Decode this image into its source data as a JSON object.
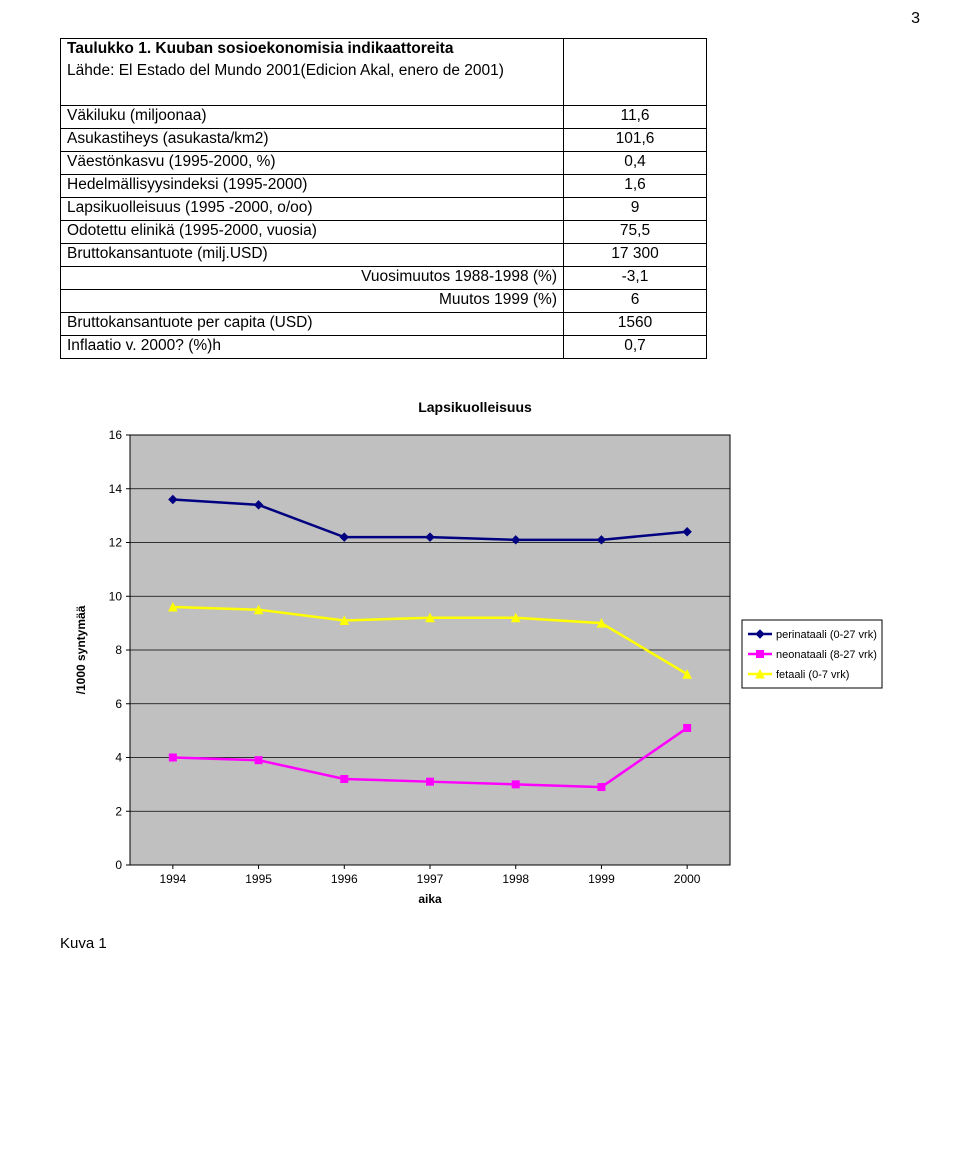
{
  "pagenum": "3",
  "table": {
    "caption": "Taulukko 1. Kuuban sosioekonomisia indikaattoreita",
    "source": "Lähde: El Estado del Mundo 2001(Edicion Akal, enero de 2001)",
    "rows": [
      {
        "label": "Väkiluku (miljoonaa)",
        "val": "11,6",
        "indent": 0
      },
      {
        "label": "Asukastiheys (asukasta/km2)",
        "val": "101,6",
        "indent": 0
      },
      {
        "label": "Väestönkasvu (1995-2000, %)",
        "val": "0,4",
        "indent": 0
      },
      {
        "label": "Hedelmällisyysindeksi (1995-2000)",
        "val": "1,6",
        "indent": 0
      },
      {
        "label": "Lapsikuolleisuus (1995 -2000, o/oo)",
        "val": "9",
        "indent": 0
      },
      {
        "label": "Odotettu elinikä (1995-2000, vuosia)",
        "val": "75,5",
        "indent": 0
      },
      {
        "label": "Bruttokansantuote (milj.USD)",
        "val": "17 300",
        "indent": 0
      },
      {
        "label": "Vuosimuutos 1988-1998 (%)",
        "val": "-3,1",
        "indent": 1
      },
      {
        "label": "Muutos 1999 (%)",
        "val": "6",
        "indent": 1
      },
      {
        "label": "Bruttokansantuote per capita (USD)",
        "val": "1560",
        "indent": 0
      },
      {
        "label": "Inflaatio v. 2000? (%)h",
        "val": "0,7",
        "indent": 0
      }
    ]
  },
  "chart": {
    "title": "Lapsikuolleisuus",
    "ylabel": "/1000 syntymää",
    "xlabel": "aika",
    "plot_bg": "#c0c0c0",
    "grid_color": "#000000",
    "ylim": [
      0,
      16
    ],
    "ytick_step": 2,
    "x_categories": [
      "1994",
      "1995",
      "1996",
      "1997",
      "1998",
      "1999",
      "2000"
    ],
    "series": [
      {
        "name": "perinataali (0-27 vrk)",
        "color": "#000080",
        "marker": "diamond",
        "marker_size": 8,
        "line_width": 2.5,
        "values": [
          13.6,
          13.4,
          12.2,
          12.2,
          12.1,
          12.1,
          12.4
        ]
      },
      {
        "name": "neonataali (8-27 vrk)",
        "color": "#ff00ff",
        "marker": "square",
        "marker_size": 7,
        "line_width": 2.5,
        "values": [
          4.0,
          3.9,
          3.2,
          3.1,
          3.0,
          2.9,
          5.1
        ]
      },
      {
        "name": "fetaali (0-7 vrk)",
        "color": "#ffff00",
        "marker": "triangle",
        "marker_size": 8,
        "line_width": 2.5,
        "values": [
          9.6,
          9.5,
          9.1,
          9.2,
          9.2,
          9.0,
          7.1
        ]
      }
    ],
    "legend": {
      "bg": "#ffffff",
      "border": "#000000"
    },
    "axis_fontsize": 12,
    "label_fontsize": 12,
    "title_fontsize": 14
  },
  "figlabel": "Kuva 1"
}
